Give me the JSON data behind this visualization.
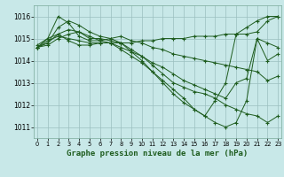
{
  "title": "Graphe pression niveau de la mer (hPa)",
  "bg_color": "#c8e8e8",
  "grid_color": "#9bbfbf",
  "line_color": "#1e5c1e",
  "ylim": [
    1010.5,
    1016.5
  ],
  "xlim": [
    -0.3,
    23.3
  ],
  "yticks": [
    1011,
    1012,
    1013,
    1014,
    1015,
    1016
  ],
  "xticks": [
    0,
    1,
    2,
    3,
    4,
    5,
    6,
    7,
    8,
    9,
    10,
    11,
    12,
    13,
    14,
    15,
    16,
    17,
    18,
    19,
    20,
    21,
    22,
    23
  ],
  "series": [
    [
      1014.7,
      1015.0,
      1015.2,
      1014.9,
      1014.7,
      1014.7,
      1014.8,
      1014.8,
      1014.8,
      1014.8,
      1014.9,
      1014.9,
      1015.0,
      1015.0,
      1015.0,
      1015.1,
      1015.1,
      1015.1,
      1015.2,
      1015.2,
      1015.2,
      1015.3,
      1015.8,
      1016.0
    ],
    [
      1014.6,
      1015.0,
      1016.0,
      1015.7,
      1015.1,
      1014.9,
      1014.9,
      1015.0,
      1015.1,
      1014.9,
      1014.8,
      1014.6,
      1014.5,
      1014.3,
      1014.2,
      1014.1,
      1014.0,
      1013.9,
      1013.8,
      1013.7,
      1013.6,
      1013.5,
      1013.1,
      1013.3
    ],
    [
      1014.6,
      1014.8,
      1015.2,
      1015.4,
      1015.3,
      1015.0,
      1015.0,
      1014.9,
      1014.8,
      1014.5,
      1014.2,
      1013.8,
      1013.4,
      1013.0,
      1012.8,
      1012.6,
      1012.5,
      1012.3,
      1012.0,
      1011.8,
      1011.6,
      1011.5,
      1011.2,
      1011.5
    ],
    [
      1014.6,
      1014.8,
      1015.5,
      1015.8,
      1015.6,
      1015.3,
      1015.1,
      1015.0,
      1014.8,
      1014.4,
      1014.0,
      1013.5,
      1013.0,
      1012.5,
      1012.1,
      1011.8,
      1011.5,
      1011.2,
      1011.0,
      1011.2,
      1012.2,
      1015.0,
      1014.8,
      1014.6
    ],
    [
      1014.6,
      1014.7,
      1015.0,
      1015.2,
      1015.3,
      1015.1,
      1014.9,
      1014.8,
      1014.5,
      1014.2,
      1013.9,
      1013.5,
      1013.1,
      1012.7,
      1012.3,
      1011.8,
      1011.5,
      1012.2,
      1013.0,
      1015.2,
      1015.5,
      1015.8,
      1016.0,
      1016.0
    ],
    [
      1014.6,
      1014.9,
      1015.1,
      1015.0,
      1014.9,
      1014.8,
      1014.8,
      1014.8,
      1014.6,
      1014.4,
      1014.2,
      1013.9,
      1013.7,
      1013.4,
      1013.1,
      1012.9,
      1012.7,
      1012.5,
      1012.3,
      1013.0,
      1013.2,
      1015.0,
      1014.0,
      1014.3
    ]
  ]
}
